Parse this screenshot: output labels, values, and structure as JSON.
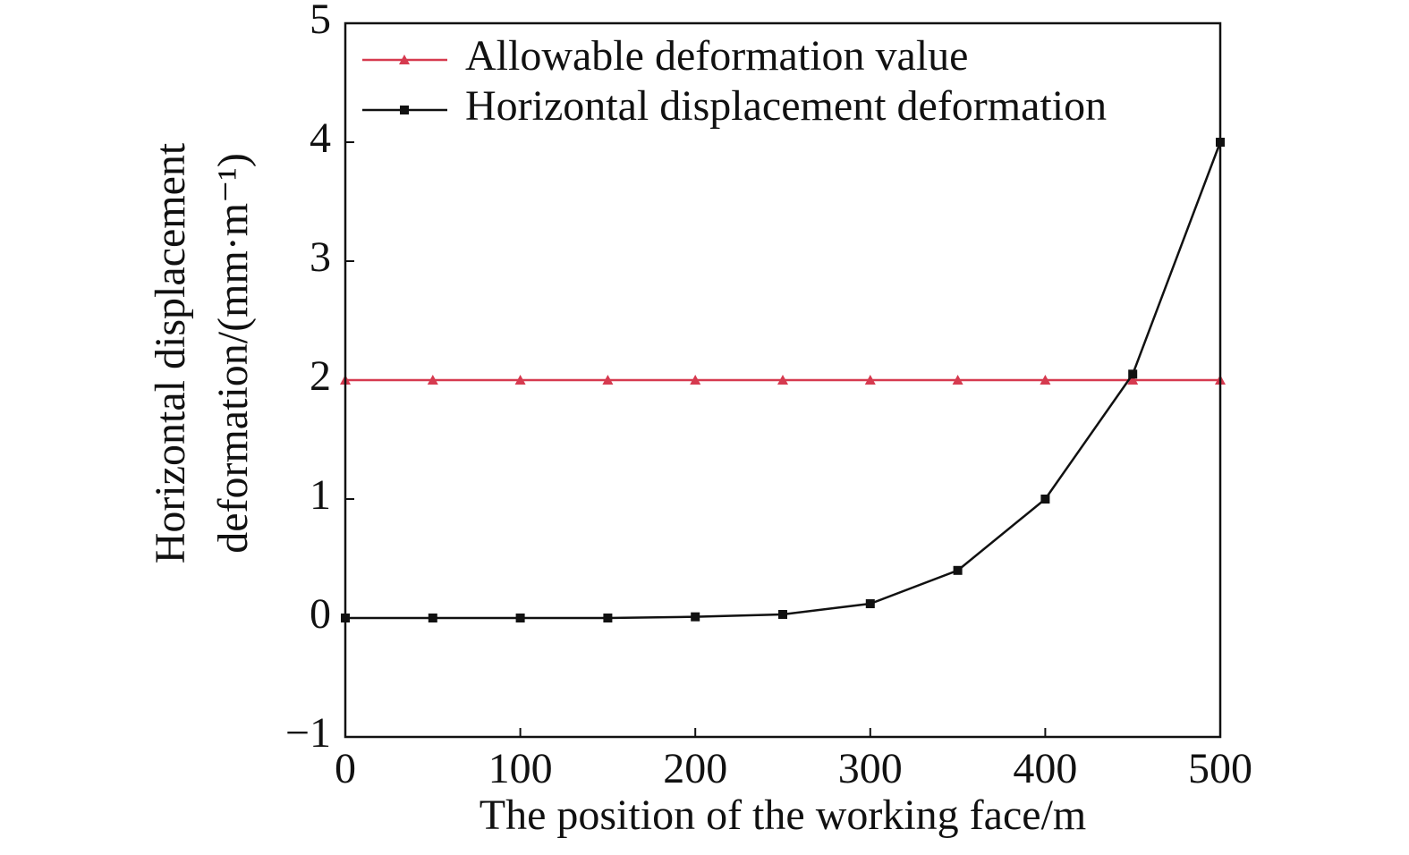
{
  "chart_data": {
    "type": "line",
    "xlabel": "The position of the working face/m",
    "ylabel": [
      "Horizontal displacement",
      "deformation/(mm·m⁻¹)"
    ],
    "x": [
      0,
      50,
      100,
      150,
      200,
      250,
      300,
      350,
      400,
      450,
      500
    ],
    "series": [
      {
        "name": "Allowable deformation value",
        "color": "#d63a4f",
        "marker": "triangle",
        "values": [
          2,
          2,
          2,
          2,
          2,
          2,
          2,
          2,
          2,
          2,
          2
        ]
      },
      {
        "name": "Horizontal displacement deformation",
        "color": "#111111",
        "marker": "square",
        "values": [
          0,
          0,
          0,
          0,
          0.01,
          0.03,
          0.12,
          0.4,
          1.0,
          2.05,
          4.0
        ]
      }
    ],
    "xlim": [
      0,
      500
    ],
    "xticks": [
      0,
      100,
      200,
      300,
      400,
      500
    ],
    "ylim": [
      -1,
      5
    ],
    "yticks": [
      {
        "value": -1,
        "label": "−1"
      },
      0,
      1,
      2,
      3,
      4,
      5
    ],
    "legend": "upper left",
    "grid": false
  }
}
